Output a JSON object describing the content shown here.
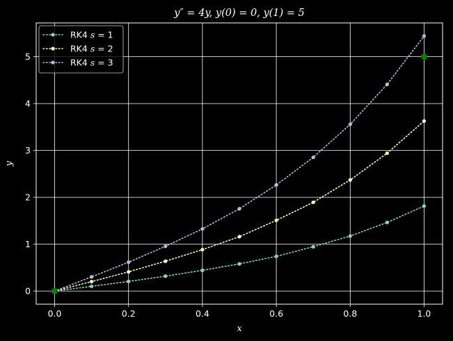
{
  "chart_data": {
    "type": "line",
    "title": "y″ = 4y, y(0) = 0, y(1) = 5",
    "xlabel": "x",
    "ylabel": "y",
    "xlim": [
      -0.05,
      1.05
    ],
    "ylim": [
      -0.28,
      5.72
    ],
    "xticks": [
      0.0,
      0.2,
      0.4,
      0.6,
      0.8,
      1.0
    ],
    "xtick_labels": [
      "0.0",
      "0.2",
      "0.4",
      "0.6",
      "0.8",
      "1.0"
    ],
    "yticks": [
      0,
      1,
      2,
      3,
      4,
      5
    ],
    "ytick_labels": [
      "0",
      "1",
      "2",
      "3",
      "4",
      "5"
    ],
    "grid": true,
    "legend_position": "top-left",
    "x": [
      0.0,
      0.1,
      0.2,
      0.3,
      0.4,
      0.5,
      0.6,
      0.7,
      0.8,
      0.9,
      1.0
    ],
    "series": [
      {
        "name": "RK4 s = 1",
        "legend_prefix": "RK4 ",
        "legend_var": "s",
        "legend_suffix": " = 1",
        "color": "#8dd3c7",
        "values": [
          0.0,
          0.101,
          0.205,
          0.318,
          0.442,
          0.58,
          0.74,
          0.946,
          1.174,
          1.464,
          1.813
        ]
      },
      {
        "name": "RK4 s = 2",
        "legend_prefix": "RK4 ",
        "legend_var": "s",
        "legend_suffix": " = 2",
        "color": "#feffb3",
        "values": [
          0.0,
          0.202,
          0.41,
          0.637,
          0.884,
          1.16,
          1.508,
          1.893,
          2.37,
          2.941,
          3.627
        ]
      },
      {
        "name": "RK4 s = 3",
        "legend_prefix": "RK4 ",
        "legend_var": "s",
        "legend_suffix": " = 3",
        "color": "#bfbbd9",
        "values": [
          0.0,
          0.303,
          0.615,
          0.955,
          1.326,
          1.755,
          2.263,
          2.852,
          3.557,
          4.409,
          5.44
        ]
      }
    ],
    "boundary_points": {
      "color": "#008000",
      "points": [
        [
          0.0,
          0.0
        ],
        [
          1.0,
          5.0
        ]
      ]
    }
  },
  "colors": {
    "background": "#000000",
    "foreground": "#ffffff",
    "grid": "#ffffff"
  }
}
